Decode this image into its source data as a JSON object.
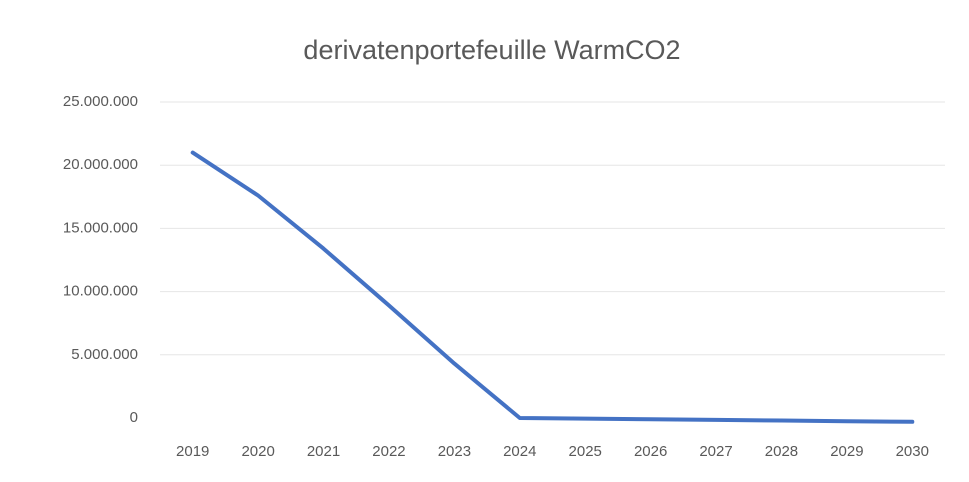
{
  "chart_data": {
    "type": "line",
    "title": "derivatenportefeuille WarmCO2",
    "categories": [
      "2019",
      "2020",
      "2021",
      "2022",
      "2023",
      "2024",
      "2025",
      "2026",
      "2027",
      "2028",
      "2029",
      "2030"
    ],
    "series": [
      {
        "name": "derivatenportefeuille",
        "color": "#4472c4",
        "values": [
          21000000,
          17600000,
          13400000,
          8900000,
          4300000,
          0,
          -50000,
          -100000,
          -150000,
          -200000,
          -250000,
          -300000
        ]
      }
    ],
    "ylim": [
      0,
      25000000
    ],
    "yticks": [
      0,
      {
        "value": 5000000,
        "label": "5.000.000"
      },
      {
        "value": 10000000,
        "label": "10.000.000"
      },
      {
        "value": 15000000,
        "label": "15.000.000"
      },
      {
        "value": 20000000,
        "label": "20.000.000"
      },
      {
        "value": 25000000,
        "label": "25.000.000"
      }
    ],
    "grid": true
  }
}
